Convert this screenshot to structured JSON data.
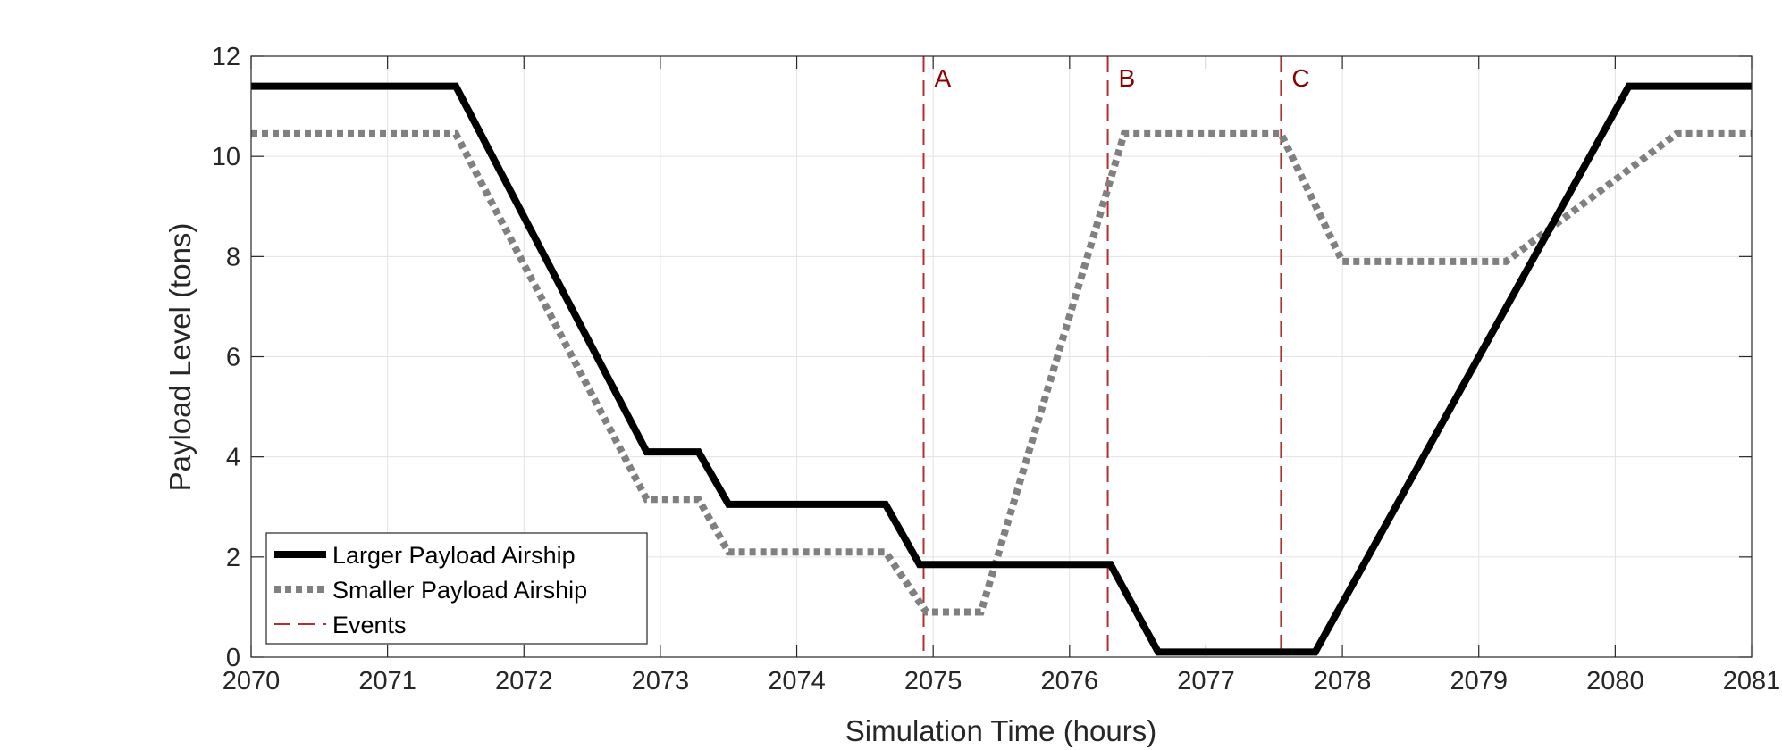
{
  "chart_data": {
    "type": "line",
    "xlabel": "Simulation Time (hours)",
    "ylabel": "Payload Level (tons)",
    "xlim": [
      2070,
      2081
    ],
    "ylim": [
      0,
      12
    ],
    "xticks": [
      2070,
      2071,
      2072,
      2073,
      2074,
      2075,
      2076,
      2077,
      2078,
      2079,
      2080,
      2081
    ],
    "yticks": [
      0,
      2,
      4,
      6,
      8,
      10,
      12
    ],
    "grid": true,
    "legend_position": "bottom-left",
    "series": [
      {
        "name": "Larger Payload Airship",
        "style": "solid",
        "color": "#000000",
        "x": [
          2070,
          2071.5,
          2072.9,
          2073.28,
          2073.5,
          2074.65,
          2074.9,
          2076.3,
          2076.65,
          2077.8,
          2080.1,
          2081
        ],
        "y": [
          11.4,
          11.4,
          4.1,
          4.1,
          3.05,
          3.05,
          1.85,
          1.85,
          0.1,
          0.1,
          11.4,
          11.4
        ]
      },
      {
        "name": "Smaller Payload Airship",
        "style": "dotted",
        "color": "#808080",
        "x": [
          2070,
          2071.5,
          2072.9,
          2073.28,
          2073.5,
          2074.65,
          2074.95,
          2075.35,
          2076.4,
          2077.55,
          2078.0,
          2079.2,
          2080.45,
          2081
        ],
        "y": [
          10.45,
          10.45,
          3.15,
          3.15,
          2.1,
          2.1,
          0.9,
          0.9,
          10.45,
          10.45,
          7.9,
          7.9,
          10.45,
          10.45
        ]
      }
    ],
    "events": {
      "name": "Events",
      "color": "#b03030",
      "items": [
        {
          "label": "A",
          "x": 2074.93
        },
        {
          "label": "B",
          "x": 2076.28
        },
        {
          "label": "C",
          "x": 2077.55
        }
      ]
    }
  }
}
